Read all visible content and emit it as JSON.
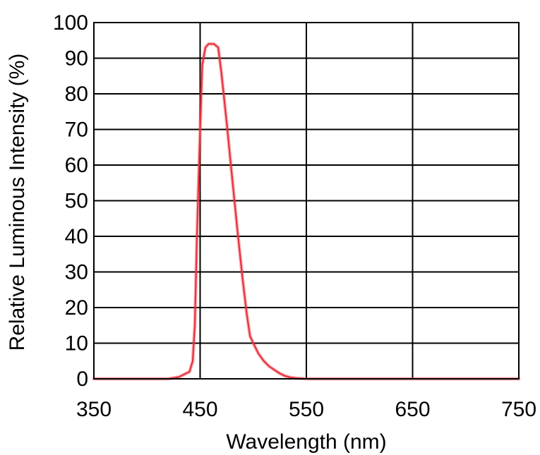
{
  "chart_data": {
    "type": "line",
    "title": "",
    "xlabel": "Wavelength (nm)",
    "ylabel": "Relative Luminous Intensity (%)",
    "xlim": [
      350,
      750
    ],
    "ylim": [
      0,
      100
    ],
    "x_ticks": [
      "350",
      "450",
      "550",
      "650",
      "750"
    ],
    "y_ticks": [
      "0",
      "10",
      "20",
      "30",
      "40",
      "50",
      "60",
      "70",
      "80",
      "90",
      "100"
    ],
    "grid": true,
    "line_color": "#e8323c",
    "series": [
      {
        "x": [
          350,
          420,
          430,
          440,
          443,
          445,
          447,
          450,
          452,
          455,
          458,
          460,
          463,
          467,
          470,
          475,
          480,
          485,
          490,
          494,
          497,
          500,
          505,
          510,
          515,
          520,
          525,
          530,
          535,
          540,
          545,
          550,
          560,
          600,
          650,
          700,
          750
        ],
        "values": [
          0,
          0,
          0.5,
          2,
          5,
          15,
          40,
          70,
          88,
          93,
          94,
          94,
          94,
          93,
          86,
          72,
          57,
          42,
          28,
          18,
          12,
          10,
          7,
          5,
          3.5,
          2.5,
          1.5,
          0.8,
          0.4,
          0.2,
          0.1,
          0,
          0,
          0,
          0,
          0,
          0
        ]
      }
    ]
  }
}
